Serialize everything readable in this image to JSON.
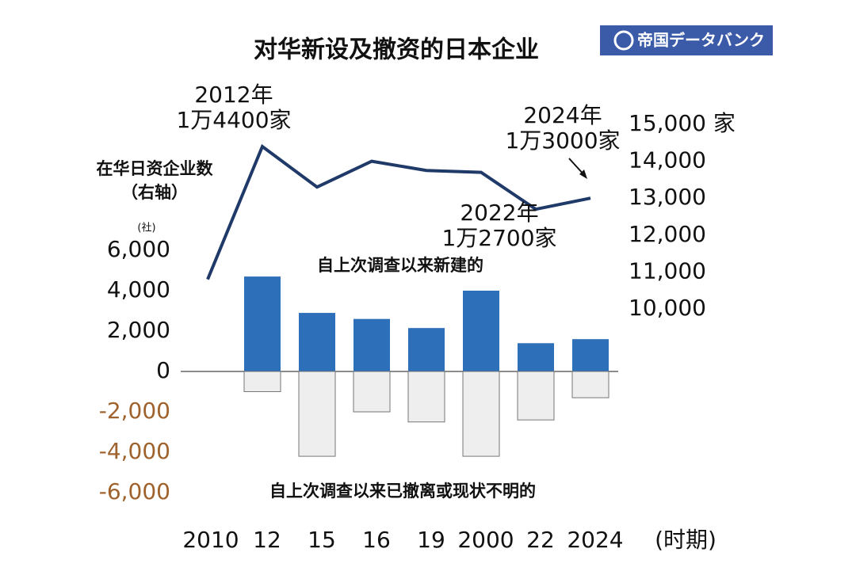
{
  "chart_data": {
    "type": "bar-line",
    "title": "对华新设及撤资的日本企业",
    "logo": "帝国データバンク",
    "categories": [
      "2010",
      "12",
      "15",
      "16",
      "19",
      "2000",
      "22",
      "2024"
    ],
    "x_label": "(时期)",
    "y_unit": "(社)",
    "ylim": [
      -6000,
      6000
    ],
    "yticks": [
      {
        "value": 6000,
        "label": "6,000"
      },
      {
        "value": 4000,
        "label": "4,000"
      },
      {
        "value": 2000,
        "label": "2,000"
      },
      0,
      {
        "value": -2000,
        "label": "-2,000"
      },
      {
        "value": -4000,
        "label": "-4,000"
      },
      {
        "value": -6000,
        "label": "-6,000"
      }
    ],
    "y2lim": [
      10000,
      15000
    ],
    "y2ticks": [
      {
        "value": 15000,
        "label": "15,000 家"
      },
      {
        "value": 14000,
        "label": "14,000"
      },
      {
        "value": 13000,
        "label": "13,000"
      },
      {
        "value": 12000,
        "label": "12,000"
      },
      {
        "value": 11000,
        "label": "11,000"
      },
      {
        "value": 10000,
        "label": "10,000"
      }
    ],
    "series": [
      {
        "name": "自上次调查以来新建的",
        "color": "#2e6fba",
        "type": "bar",
        "values": [
          null,
          4700,
          2900,
          2600,
          2150,
          4000,
          1400,
          1600
        ]
      },
      {
        "name": "自上次调查以来已撤离或现状不明的",
        "color": "#eeeeee",
        "type": "bar",
        "values": [
          null,
          -1000,
          -4200,
          -2000,
          -2500,
          -4200,
          -2400,
          -1300
        ]
      },
      {
        "name": [
          "在华日资企业数",
          "（右轴）"
        ],
        "color": "#1f3a68",
        "type": "line",
        "axis": "y2",
        "values": [
          10800,
          14400,
          13300,
          14000,
          13750,
          13700,
          12700,
          13000
        ]
      }
    ],
    "annotations": [
      [
        "2012年",
        "1万4400家"
      ],
      [
        "2024年",
        "1万3000家"
      ],
      [
        "2022年",
        "1万2700家"
      ]
    ]
  }
}
